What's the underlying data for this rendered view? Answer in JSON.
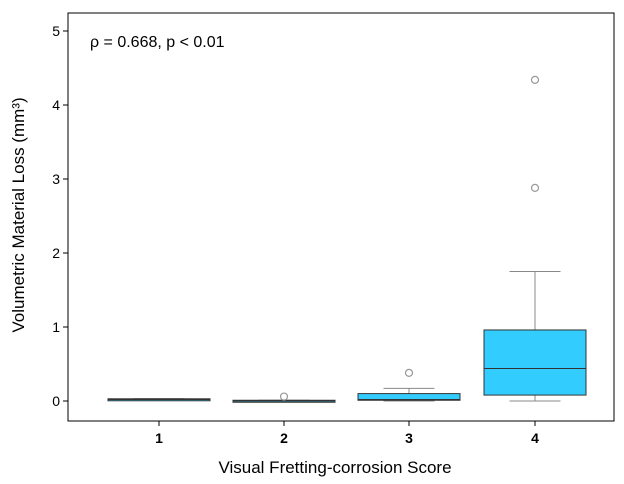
{
  "chart_data": {
    "type": "box",
    "annotation": "ρ = 0.668, p < 0.01",
    "xlabel": "Visual Fretting-corrosion Score",
    "ylabel": "Volumetric Material Loss (mm³)",
    "ylim": [
      -0.25,
      5.2
    ],
    "yticks": [
      "0",
      "1",
      "2",
      "3",
      "4",
      "5"
    ],
    "grid": false,
    "box_color": "#33CCFF",
    "series": [
      {
        "category": "1",
        "min": 0.02,
        "q1": 0.02,
        "median": 0.02,
        "q3": 0.03,
        "max": 0.03,
        "outliers": []
      },
      {
        "category": "2",
        "min": 0.0,
        "q1": 0.0,
        "median": 0.0,
        "q3": 0.01,
        "max": 0.01,
        "outliers": [
          0.06
        ]
      },
      {
        "category": "3",
        "min": 0.0,
        "q1": 0.01,
        "median": 0.02,
        "q3": 0.1,
        "max": 0.17,
        "outliers": [
          0.38
        ]
      },
      {
        "category": "4",
        "min": 0.0,
        "q1": 0.08,
        "median": 0.44,
        "q3": 0.96,
        "max": 1.75,
        "outliers": [
          2.88,
          4.34
        ]
      }
    ]
  }
}
